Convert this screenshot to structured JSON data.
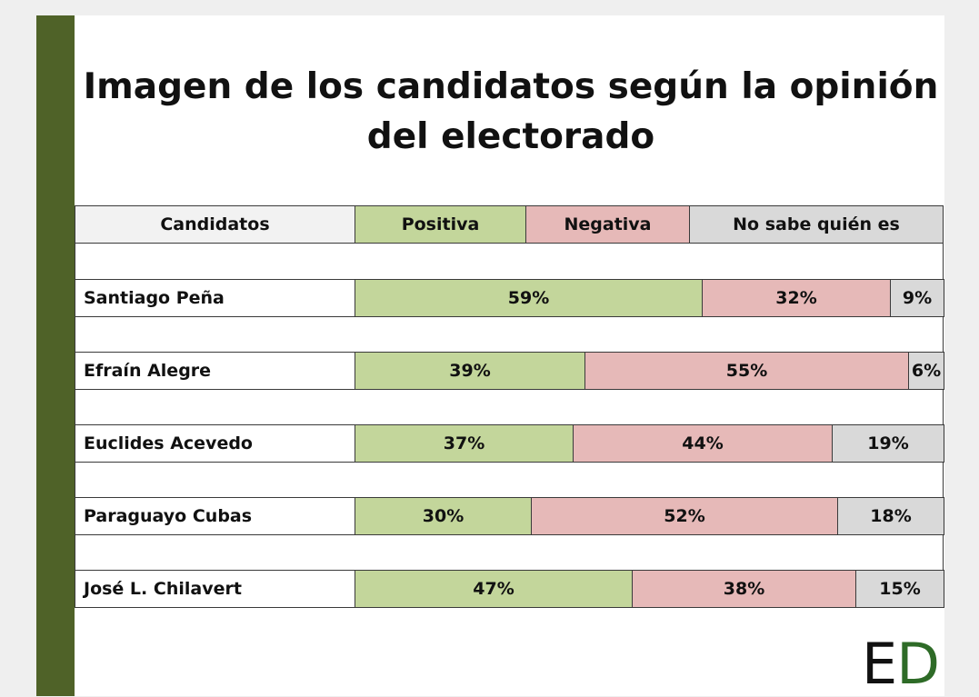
{
  "title": "Imagen de los candidatos según la opinión del electorado",
  "headers": {
    "candidatos": "Candidatos",
    "positiva": "Positiva",
    "negativa": "Negativa",
    "no_sabe": "No sabe quién es"
  },
  "colors": {
    "positiva": "#c3d69b",
    "negativa": "#e6b9b8",
    "no_sabe": "#d9d9d9",
    "header_name": "#f2f2f2",
    "sidebar": "#4f6228",
    "logo_d": "#2e6b27"
  },
  "logo": {
    "part1": "E",
    "part2": "D"
  },
  "chart_data": {
    "type": "bar",
    "title": "Imagen de los candidatos según la opinión del electorado",
    "stacked": true,
    "orientation": "horizontal",
    "categories": [
      "Santiago Peña",
      "Efraín Alegre",
      "Euclides Acevedo",
      "Paraguayo Cubas",
      "José L. Chilavert"
    ],
    "series": [
      {
        "name": "Positiva",
        "values": [
          59,
          39,
          37,
          30,
          47
        ],
        "labels": [
          "59%",
          "39%",
          "37%",
          "30%",
          "47%"
        ]
      },
      {
        "name": "Negativa",
        "values": [
          32,
          55,
          44,
          52,
          38
        ],
        "labels": [
          "32%",
          "55%",
          "44%",
          "52%",
          "38%"
        ]
      },
      {
        "name": "No sabe quién es",
        "values": [
          9,
          6,
          19,
          18,
          15
        ],
        "labels": [
          "9%",
          "6%",
          "19%",
          "18%",
          "15%"
        ]
      }
    ],
    "xlim": [
      0,
      100
    ]
  }
}
